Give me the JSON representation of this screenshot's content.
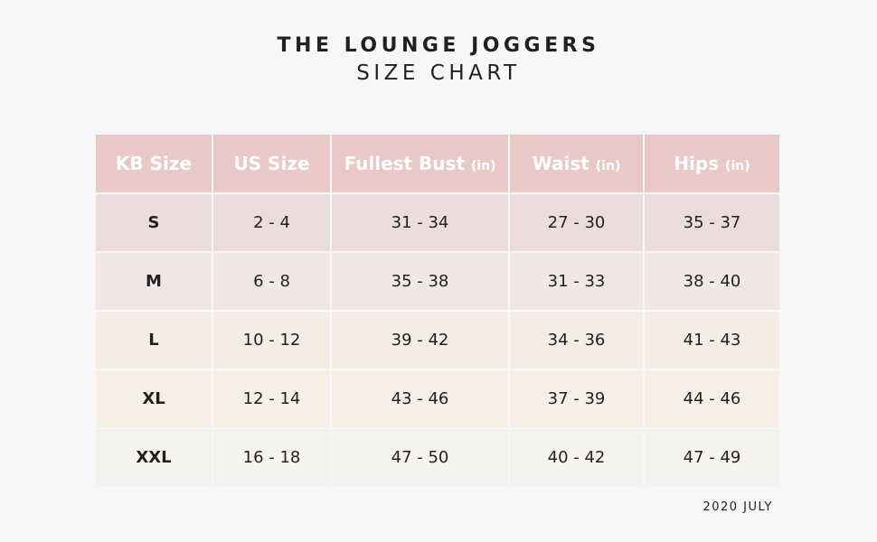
{
  "title": "THE LOUNGE JOGGERS",
  "subtitle": "SIZE CHART",
  "table": {
    "headers": [
      {
        "label": "KB Size",
        "unit": ""
      },
      {
        "label": "US Size",
        "unit": ""
      },
      {
        "label": "Fullest Bust",
        "unit": "(in)"
      },
      {
        "label": "Waist",
        "unit": "(in)"
      },
      {
        "label": "Hips",
        "unit": "(in)"
      }
    ],
    "rows": [
      [
        "S",
        "2 - 4",
        "31 - 34",
        "27 - 30",
        "35 - 37"
      ],
      [
        "M",
        "6 - 8",
        "35 - 38",
        "31 - 33",
        "38 - 40"
      ],
      [
        "L",
        "10 - 12",
        "39 - 42",
        "34 - 36",
        "41 - 43"
      ],
      [
        "XL",
        "12 - 14",
        "43 - 46",
        "37 - 39",
        "44 - 46"
      ],
      [
        "XXL",
        "16 - 18",
        "47 - 50",
        "40 - 42",
        "47 - 49"
      ]
    ]
  },
  "footer": {
    "date": "2020 JULY"
  },
  "colors": {
    "header_bg": "#e8c9c6",
    "row_colors": [
      "#eddcdc",
      "#f2e7e7",
      "#f4ede4",
      "#f5efe6",
      "#f5f3f0"
    ],
    "background": "#f7f7f9",
    "text": "#231f20"
  }
}
